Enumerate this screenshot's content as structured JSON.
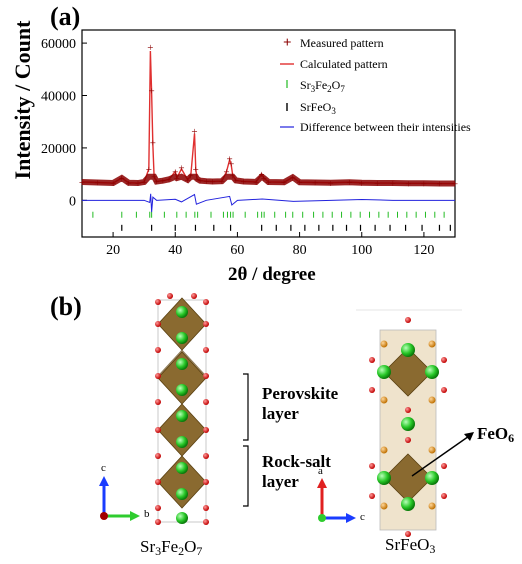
{
  "panel_a": {
    "label": "(a)",
    "ylabel": "Intensity / Count",
    "xlabel": "2θ / degree",
    "legend": [
      {
        "symbol": "+",
        "text": "Measured pattern",
        "color": "#8b0000"
      },
      {
        "symbol": "line",
        "text": "Calculated pattern",
        "color": "#e03030"
      },
      {
        "symbol": "tick",
        "text": "Sr3Fe2O7",
        "color": "#22bb22"
      },
      {
        "symbol": "tick",
        "text": "SrFeO3",
        "color": "#000000"
      },
      {
        "symbol": "line",
        "text": "Difference between their intensities",
        "color": "#2222dd"
      }
    ]
  },
  "panel_b": {
    "label": "(b)",
    "left_caption": "Sr3Fe2O7",
    "right_caption": "SrFeO3",
    "perovskite_label_1": "Perovskite",
    "perovskite_label_2": "layer",
    "rocksalt_label_1": "Rock-salt",
    "rocksalt_label_2": "layer",
    "feo6_label": "FeO6",
    "axis_left_c": "c",
    "axis_left_b": "b",
    "axis_right_a": "a",
    "axis_right_c": "c"
  },
  "chart_data": {
    "type": "scatter",
    "title": "",
    "xlabel": "2θ / degree",
    "ylabel": "Intensity / Count",
    "xlim": [
      10,
      130
    ],
    "ylim": [
      -14000,
      65000
    ],
    "x_ticks": [
      20,
      40,
      60,
      80,
      100,
      120
    ],
    "y_ticks": [
      0,
      20000,
      40000,
      60000
    ],
    "series": [
      {
        "name": "Measured pattern",
        "kind": "points",
        "x": [
          10,
          15,
          20,
          22.8,
          25,
          28,
          30,
          31.5,
          32.0,
          32.4,
          32.8,
          33.2,
          34,
          36,
          38,
          40,
          40.5,
          42,
          44,
          45,
          46.2,
          46.6,
          47,
          48,
          50,
          52,
          55,
          56.5,
          57.5,
          58,
          58.5,
          59.5,
          62,
          66,
          67.8,
          68.5,
          70,
          75,
          77.8,
          80,
          85,
          90,
          96,
          100,
          105,
          110,
          115,
          120,
          125,
          130
        ],
        "y": [
          7000,
          6800,
          6600,
          8500,
          6700,
          6600,
          7000,
          12000,
          58500,
          42000,
          22000,
          9000,
          7200,
          7500,
          8000,
          11000,
          8500,
          12500,
          7800,
          9500,
          26500,
          12000,
          8200,
          7500,
          7300,
          7200,
          7300,
          11000,
          16000,
          14000,
          9500,
          7600,
          7200,
          7000,
          10000,
          8500,
          7000,
          6900,
          8800,
          6900,
          6800,
          6700,
          6900,
          6700,
          6600,
          6600,
          6500,
          6500,
          6400,
          6400
        ]
      },
      {
        "name": "Calculated pattern",
        "kind": "line",
        "x": [
          10,
          15,
          20,
          22.8,
          25,
          28,
          30,
          31.5,
          32.0,
          32.4,
          32.8,
          33.2,
          34,
          36,
          38,
          40,
          40.5,
          42,
          44,
          45,
          46.2,
          46.6,
          47,
          48,
          50,
          52,
          55,
          56.5,
          57.5,
          58,
          58.5,
          59.5,
          62,
          66,
          67.8,
          68.5,
          70,
          75,
          77.8,
          80,
          85,
          90,
          96,
          100,
          105,
          110,
          115,
          120,
          125,
          130
        ],
        "y": [
          7000,
          6800,
          6600,
          8500,
          6700,
          6600,
          7000,
          12000,
          57000,
          41000,
          21000,
          9000,
          7200,
          7500,
          8000,
          11000,
          8500,
          12000,
          7800,
          9500,
          25500,
          12000,
          8200,
          7500,
          7300,
          7200,
          7300,
          11000,
          15500,
          13500,
          9500,
          7600,
          7200,
          7000,
          10000,
          8500,
          7000,
          6900,
          8800,
          6900,
          6800,
          6700,
          6900,
          6700,
          6600,
          6600,
          6500,
          6500,
          6400,
          6400
        ]
      },
      {
        "name": "Difference between their intensities",
        "kind": "line",
        "x": [
          10,
          20,
          30,
          31.8,
          32.1,
          32.4,
          32.8,
          34,
          40,
          42,
          46.2,
          46.8,
          50,
          57.5,
          58.2,
          60,
          68,
          78,
          90,
          100,
          110,
          120,
          130
        ],
        "y": [
          0,
          0,
          0,
          -800,
          2500,
          -4500,
          1200,
          0,
          400,
          -600,
          2200,
          -1500,
          0,
          1500,
          -1800,
          0,
          500,
          -400,
          0,
          300,
          0,
          0,
          0
        ]
      },
      {
        "name": "Sr3Fe2O7",
        "kind": "ticks",
        "y": -5500,
        "x": [
          13.5,
          22.8,
          27.5,
          31.8,
          32.4,
          36.5,
          40.5,
          43.5,
          46.3,
          47.2,
          51.5,
          55.5,
          56.8,
          57.8,
          58.6,
          62.5,
          66.5,
          67.8,
          68.6,
          72,
          75.5,
          77.8,
          81,
          84.5,
          87.5,
          90.5,
          93.5,
          96.5,
          99.5,
          102.5,
          105.5,
          108.5,
          111.5,
          114.5,
          117.5,
          120.5,
          123.5,
          126.5
        ]
      },
      {
        "name": "SrFeO3",
        "kind": "ticks",
        "y": -10500,
        "x": [
          22.8,
          32.4,
          40.0,
          46.5,
          52.4,
          57.8,
          67.8,
          72.5,
          77.2,
          81.7,
          86.2,
          90.7,
          95.1,
          99.6,
          104.3,
          109.1,
          114.1,
          119.4,
          125.0,
          128.5
        ]
      }
    ]
  }
}
